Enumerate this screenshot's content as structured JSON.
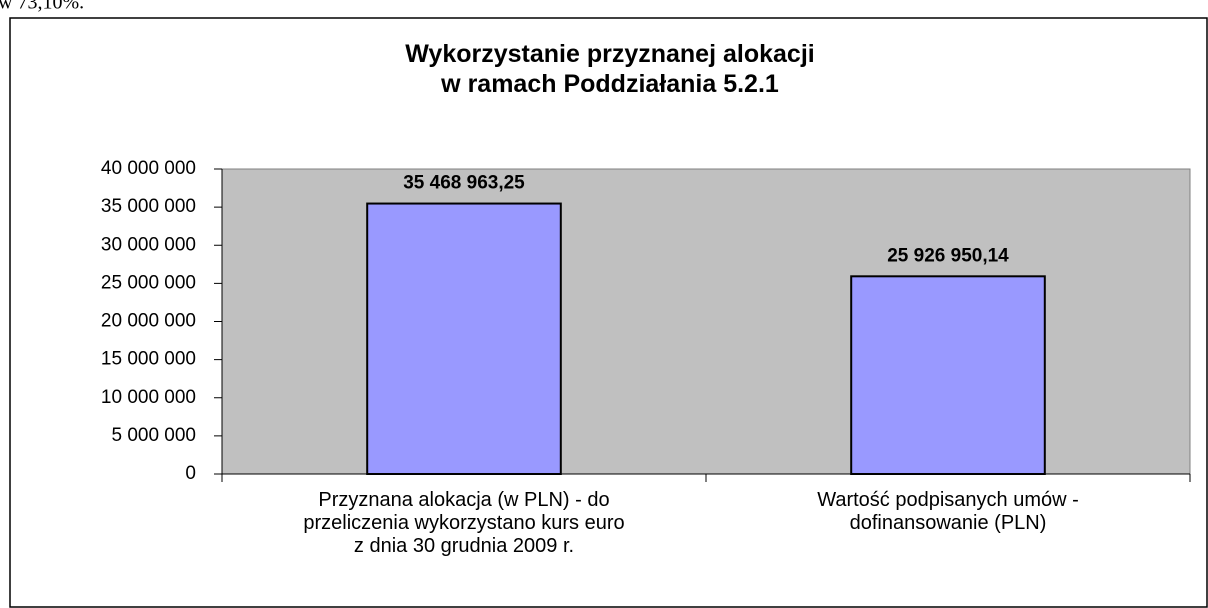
{
  "caption_fragment": "w 73,10%.",
  "chart_data": {
    "type": "bar",
    "title": "Wykorzystanie przyznanej alokacji\nw ramach Poddziałania 5.2.1",
    "categories": [
      "Przyznana alokacja (w PLN) - do\nprzeliczenia wykorzystano kurs euro\nz dnia 30 grudnia 2009 r.",
      "Wartość podpisanych umów -\ndofinansowanie (PLN)"
    ],
    "values": [
      35468963.25,
      25926950.14
    ],
    "value_labels": [
      "35 468 963,25",
      "25 926 950,14"
    ],
    "color": "#9999ff",
    "ylim": [
      0,
      40000000
    ],
    "yticks": [
      0,
      {
        "value": 5000000,
        "label": "5 000 000"
      },
      {
        "value": 10000000,
        "label": "10 000 000"
      },
      {
        "value": 15000000,
        "label": "15 000 000"
      },
      {
        "value": 20000000,
        "label": "20 000 000"
      },
      {
        "value": 25000000,
        "label": "25 000 000"
      },
      {
        "value": 30000000,
        "label": "30 000 000"
      },
      {
        "value": 35000000,
        "label": "35 000 000"
      },
      {
        "value": 40000000,
        "label": "40 000 000"
      }
    ],
    "grid": false
  }
}
